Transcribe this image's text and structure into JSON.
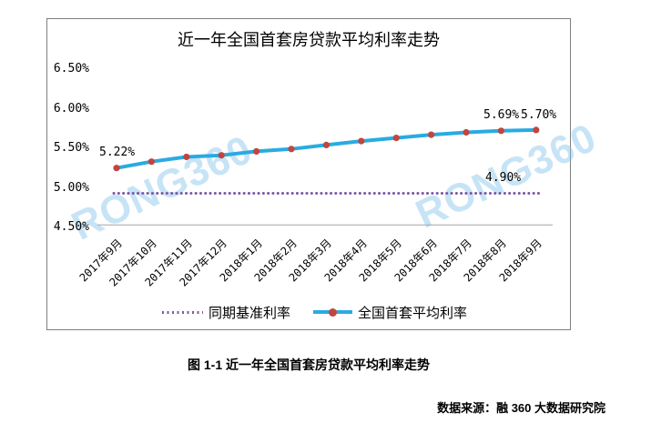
{
  "page": {
    "caption": "图 1-1 近一年全国首套房贷款平均利率走势",
    "source": "数据来源：融 360 大数据研究院",
    "watermark": "RONG360"
  },
  "chart_data": {
    "type": "line",
    "title": "近一年全国首套房贷款平均利率走势",
    "categories": [
      "2017年9月",
      "2017年10月",
      "2017年11月",
      "2017年12月",
      "2018年1月",
      "2018年2月",
      "2018年3月",
      "2018年4月",
      "2018年5月",
      "2018年6月",
      "2018年7月",
      "2018年8月",
      "2018年9月"
    ],
    "series": [
      {
        "name": "同期基准利率",
        "style": "dotted",
        "color": "#7B5AA6",
        "values": [
          4.9,
          4.9,
          4.9,
          4.9,
          4.9,
          4.9,
          4.9,
          4.9,
          4.9,
          4.9,
          4.9,
          4.9,
          4.9
        ]
      },
      {
        "name": "全国首套平均利率",
        "style": "solid",
        "color": "#29ABE2",
        "marker_color": "#C2453F",
        "values": [
          5.22,
          5.3,
          5.36,
          5.38,
          5.43,
          5.46,
          5.51,
          5.56,
          5.6,
          5.64,
          5.67,
          5.69,
          5.7
        ]
      }
    ],
    "annotations": [
      {
        "text": "5.22%",
        "series": "全国首套平均利率",
        "point": "2017年9月"
      },
      {
        "text": "5.69%",
        "series": "全国首套平均利率",
        "point": "2018年8月"
      },
      {
        "text": "5.70%",
        "series": "全国首套平均利率",
        "point": "2018年9月"
      },
      {
        "text": "4.90%",
        "series": "同期基准利率",
        "point": "2018年6月"
      }
    ],
    "yticks": [
      "6.50%",
      "6.00%",
      "5.50%",
      "5.00%",
      "4.50%"
    ],
    "ytick_values": [
      6.5,
      6.0,
      5.5,
      5.0,
      4.5
    ],
    "ylim": [
      4.5,
      6.5
    ],
    "unit": "%",
    "grid": false,
    "legend_position": "bottom"
  }
}
